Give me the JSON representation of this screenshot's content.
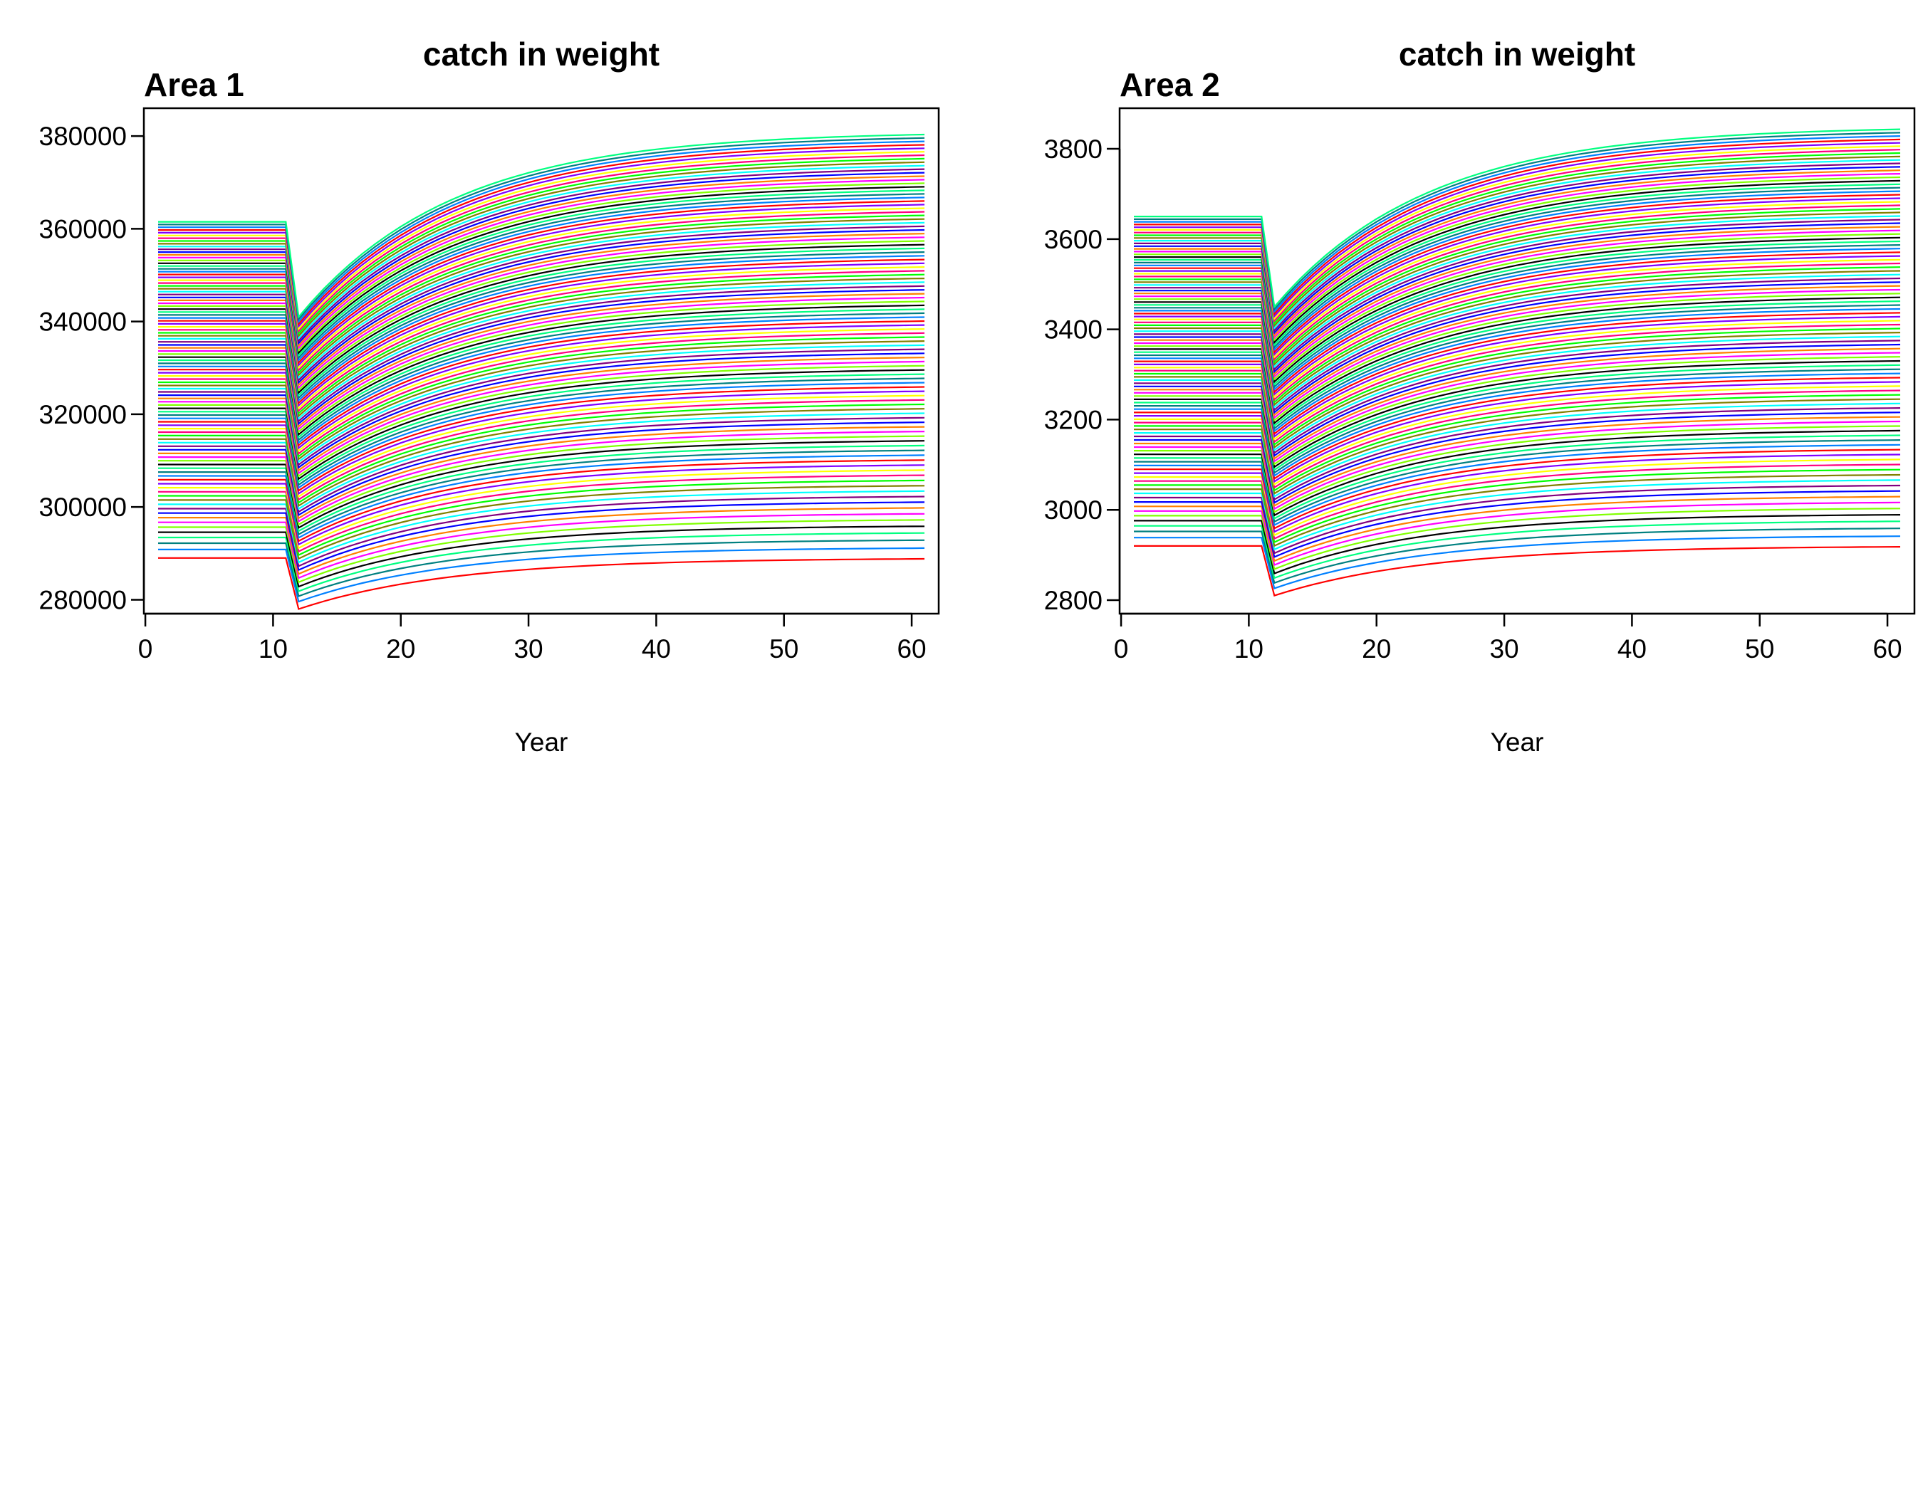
{
  "chart_data": [
    {
      "type": "line",
      "title": "catch in weight",
      "panel_label": "Area 1",
      "xlabel": "Year",
      "ylabel": "",
      "xlim": [
        1,
        61
      ],
      "ylim": [
        277000,
        386000
      ],
      "xticks": [
        0,
        10,
        20,
        30,
        40,
        50,
        60
      ],
      "yticks": [
        280000,
        300000,
        320000,
        340000,
        360000,
        380000
      ],
      "grid": false,
      "legend": "none",
      "series_model": {
        "description_years": "flat 1-11, drop at 12, recovery to 61",
        "years_flat_end": 11,
        "year_drop": 12,
        "year_end": 61,
        "count": 100,
        "initial_min": 289000,
        "initial_max": 361500,
        "dip_min": 278000,
        "dip_max": 341000,
        "final_min": 289000,
        "final_max": 381000
      }
    },
    {
      "type": "line",
      "title": "catch in weight",
      "panel_label": "Area 2",
      "xlabel": "Year",
      "ylabel": "",
      "xlim": [
        1,
        61
      ],
      "ylim": [
        2770,
        3890
      ],
      "xticks": [
        0,
        10,
        20,
        30,
        40,
        50,
        60
      ],
      "yticks": [
        2800,
        3000,
        3200,
        3400,
        3600,
        3800
      ],
      "grid": false,
      "legend": "none",
      "series_model": {
        "description_years": "flat 1-11, drop at 12, recovery to 61",
        "years_flat_end": 11,
        "year_drop": 12,
        "year_end": 61,
        "count": 100,
        "initial_min": 2920,
        "initial_max": 3650,
        "dip_min": 2810,
        "dip_max": 3450,
        "final_min": 2920,
        "final_max": 3850
      }
    }
  ],
  "colors": [
    "#ff0000",
    "#ff8000",
    "#ffff00",
    "#80ff00",
    "#00ff00",
    "#00ff80",
    "#00ffff",
    "#0080ff",
    "#0000ff",
    "#8000ff",
    "#ff00ff",
    "#ff0080",
    "#000000",
    "#808000",
    "#008080",
    "#800080"
  ]
}
